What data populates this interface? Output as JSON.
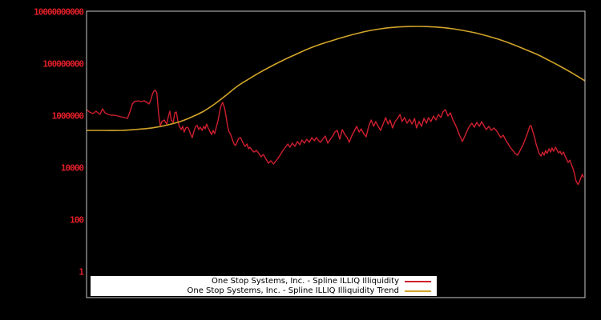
{
  "page": {
    "background": "#000000"
  },
  "chart_data": {
    "type": "line",
    "title": "",
    "grid": false,
    "plot_border_color": "#c9c9c9",
    "x_axis": {
      "label": "",
      "tick_labels": [],
      "units": "percent_of_range"
    },
    "y_axis": {
      "scale": "log",
      "label": "",
      "ticks": [
        1,
        100,
        10000,
        1000000,
        100000000,
        10000000000
      ],
      "tick_labels": [
        "1",
        "100",
        "10000",
        "1000000",
        "100000000",
        "10000000000"
      ],
      "range": [
        0.1,
        12000000000
      ],
      "tick_color": "#e01f26"
    },
    "legend": {
      "position": "bottom-inside",
      "background": "#ffffff",
      "text_color": "#000000"
    },
    "series": [
      {
        "name": "One Stop Systems, Inc. - Spline ILLIQ Illiquidity",
        "color": "#d01f2e",
        "style": "jagged",
        "points": [
          [
            0,
            1760000
          ],
          [
            0.6,
            1430000
          ],
          [
            1.3,
            1240000
          ],
          [
            1.9,
            1530000
          ],
          [
            2.7,
            1150000
          ],
          [
            3.2,
            1890000
          ],
          [
            3.7,
            1330000
          ],
          [
            4.3,
            1150000
          ],
          [
            5.0,
            1070000
          ],
          [
            5.6,
            1070000
          ],
          [
            6.3,
            1000000
          ],
          [
            6.9,
            930000
          ],
          [
            7.6,
            870000
          ],
          [
            8.2,
            810000
          ],
          [
            8.7,
            1430000
          ],
          [
            9.2,
            2900000
          ],
          [
            9.6,
            3600000
          ],
          [
            10.3,
            3850000
          ],
          [
            10.9,
            3600000
          ],
          [
            11.6,
            3850000
          ],
          [
            12.1,
            3330000
          ],
          [
            12.5,
            2900000
          ],
          [
            12.9,
            4100000
          ],
          [
            13.2,
            6800000
          ],
          [
            13.5,
            9000000
          ],
          [
            13.8,
            9700000
          ],
          [
            14.1,
            7800000
          ],
          [
            14.3,
            2900000
          ],
          [
            14.5,
            1000000
          ],
          [
            14.8,
            400000
          ],
          [
            15.1,
            610000
          ],
          [
            15.6,
            700000
          ],
          [
            16.1,
            490000
          ],
          [
            16.4,
            930000
          ],
          [
            16.7,
            1530000
          ],
          [
            17.0,
            700000
          ],
          [
            17.4,
            570000
          ],
          [
            17.7,
            1330000
          ],
          [
            18.0,
            1430000
          ],
          [
            18.3,
            700000
          ],
          [
            18.6,
            400000
          ],
          [
            19.0,
            300000
          ],
          [
            19.3,
            400000
          ],
          [
            19.6,
            240000
          ],
          [
            19.9,
            345000
          ],
          [
            20.3,
            370000
          ],
          [
            20.6,
            280000
          ],
          [
            20.9,
            196000
          ],
          [
            21.2,
            148000
          ],
          [
            21.5,
            240000
          ],
          [
            21.9,
            400000
          ],
          [
            22.2,
            430000
          ],
          [
            22.5,
            300000
          ],
          [
            22.8,
            370000
          ],
          [
            23.2,
            280000
          ],
          [
            23.5,
            400000
          ],
          [
            23.8,
            320000
          ],
          [
            24.1,
            490000
          ],
          [
            24.4,
            345000
          ],
          [
            24.8,
            240000
          ],
          [
            25.1,
            196000
          ],
          [
            25.4,
            280000
          ],
          [
            25.7,
            210000
          ],
          [
            26.0,
            345000
          ],
          [
            26.4,
            700000
          ],
          [
            26.7,
            1430000
          ],
          [
            27.0,
            2500000
          ],
          [
            27.3,
            3330000
          ],
          [
            27.7,
            2000000
          ],
          [
            28.0,
            930000
          ],
          [
            28.3,
            400000
          ],
          [
            28.6,
            240000
          ],
          [
            28.9,
            196000
          ],
          [
            29.3,
            119000
          ],
          [
            29.6,
            84000
          ],
          [
            29.9,
            73000
          ],
          [
            30.2,
            97000
          ],
          [
            30.5,
            137000
          ],
          [
            30.9,
            148000
          ],
          [
            31.2,
            111000
          ],
          [
            31.5,
            84000
          ],
          [
            31.8,
            68000
          ],
          [
            32.2,
            84000
          ],
          [
            32.5,
            55000
          ],
          [
            32.8,
            63000
          ],
          [
            33.1,
            51000
          ],
          [
            33.6,
            41000
          ],
          [
            34.1,
            47500
          ],
          [
            34.6,
            36000
          ],
          [
            35.0,
            27000
          ],
          [
            35.5,
            33000
          ],
          [
            36.0,
            22000
          ],
          [
            36.5,
            15300
          ],
          [
            37.0,
            18900
          ],
          [
            37.5,
            14300
          ],
          [
            37.9,
            17600
          ],
          [
            38.4,
            23400
          ],
          [
            38.9,
            33000
          ],
          [
            39.4,
            47500
          ],
          [
            39.9,
            63000
          ],
          [
            40.4,
            84000
          ],
          [
            40.8,
            63000
          ],
          [
            41.3,
            90000
          ],
          [
            41.8,
            68000
          ],
          [
            42.3,
            104000
          ],
          [
            42.8,
            78000
          ],
          [
            43.2,
            119000
          ],
          [
            43.7,
            90000
          ],
          [
            44.2,
            128000
          ],
          [
            44.7,
            97000
          ],
          [
            45.2,
            148000
          ],
          [
            45.7,
            111000
          ],
          [
            46.1,
            148000
          ],
          [
            46.6,
            111000
          ],
          [
            46.9,
            97000
          ],
          [
            47.4,
            128000
          ],
          [
            47.9,
            170000
          ],
          [
            48.4,
            90000
          ],
          [
            48.9,
            128000
          ],
          [
            49.4,
            170000
          ],
          [
            49.8,
            240000
          ],
          [
            50.3,
            280000
          ],
          [
            50.8,
            128000
          ],
          [
            51.3,
            300000
          ],
          [
            51.8,
            196000
          ],
          [
            52.3,
            148000
          ],
          [
            52.7,
            97000
          ],
          [
            53.2,
            170000
          ],
          [
            53.7,
            260000
          ],
          [
            54.2,
            400000
          ],
          [
            54.7,
            240000
          ],
          [
            55.1,
            320000
          ],
          [
            55.6,
            210000
          ],
          [
            56.1,
            158000
          ],
          [
            56.6,
            400000
          ],
          [
            57.1,
            700000
          ],
          [
            57.6,
            400000
          ],
          [
            58.0,
            610000
          ],
          [
            58.5,
            400000
          ],
          [
            59.0,
            280000
          ],
          [
            59.5,
            490000
          ],
          [
            60.0,
            870000
          ],
          [
            60.5,
            490000
          ],
          [
            60.9,
            700000
          ],
          [
            61.4,
            345000
          ],
          [
            61.9,
            610000
          ],
          [
            62.4,
            810000
          ],
          [
            62.9,
            1150000
          ],
          [
            63.3,
            610000
          ],
          [
            63.8,
            870000
          ],
          [
            64.3,
            530000
          ],
          [
            64.8,
            750000
          ],
          [
            65.3,
            490000
          ],
          [
            65.8,
            810000
          ],
          [
            66.2,
            345000
          ],
          [
            66.7,
            610000
          ],
          [
            67.2,
            400000
          ],
          [
            67.7,
            810000
          ],
          [
            68.2,
            530000
          ],
          [
            68.6,
            870000
          ],
          [
            69.1,
            610000
          ],
          [
            69.6,
            1000000
          ],
          [
            70.1,
            700000
          ],
          [
            70.6,
            1150000
          ],
          [
            71.1,
            870000
          ],
          [
            71.5,
            1430000
          ],
          [
            72.0,
            1760000
          ],
          [
            72.5,
            1000000
          ],
          [
            73.0,
            1330000
          ],
          [
            73.5,
            700000
          ],
          [
            74.0,
            460000
          ],
          [
            74.4,
            300000
          ],
          [
            74.9,
            170000
          ],
          [
            75.4,
            104000
          ],
          [
            75.9,
            170000
          ],
          [
            76.4,
            280000
          ],
          [
            76.8,
            400000
          ],
          [
            77.3,
            530000
          ],
          [
            77.8,
            370000
          ],
          [
            78.3,
            570000
          ],
          [
            78.8,
            400000
          ],
          [
            79.3,
            610000
          ],
          [
            79.7,
            430000
          ],
          [
            80.2,
            300000
          ],
          [
            80.7,
            400000
          ],
          [
            81.2,
            280000
          ],
          [
            81.7,
            345000
          ],
          [
            82.2,
            280000
          ],
          [
            82.6,
            210000
          ],
          [
            83.1,
            148000
          ],
          [
            83.6,
            183000
          ],
          [
            84.1,
            119000
          ],
          [
            84.6,
            84000
          ],
          [
            85.0,
            63000
          ],
          [
            85.5,
            47500
          ],
          [
            86.0,
            36000
          ],
          [
            86.5,
            31000
          ],
          [
            87.0,
            47500
          ],
          [
            87.5,
            73000
          ],
          [
            87.9,
            111000
          ],
          [
            88.4,
            196000
          ],
          [
            88.9,
            400000
          ],
          [
            89.2,
            430000
          ],
          [
            89.5,
            260000
          ],
          [
            89.9,
            148000
          ],
          [
            90.2,
            84000
          ],
          [
            90.5,
            55000
          ],
          [
            90.8,
            36000
          ],
          [
            91.2,
            29000
          ],
          [
            91.5,
            41000
          ],
          [
            91.8,
            31000
          ],
          [
            92.1,
            47500
          ],
          [
            92.4,
            36000
          ],
          [
            92.8,
            55000
          ],
          [
            93.1,
            41000
          ],
          [
            93.4,
            59000
          ],
          [
            93.7,
            44000
          ],
          [
            94.1,
            63000
          ],
          [
            94.4,
            47500
          ],
          [
            94.7,
            38500
          ],
          [
            95.0,
            44000
          ],
          [
            95.3,
            33000
          ],
          [
            95.7,
            41000
          ],
          [
            96.0,
            29000
          ],
          [
            96.3,
            22000
          ],
          [
            96.6,
            16400
          ],
          [
            97.0,
            20000
          ],
          [
            97.3,
            13300
          ],
          [
            97.6,
            9300
          ],
          [
            97.9,
            6100
          ],
          [
            98.2,
            3200
          ],
          [
            98.6,
            2300
          ],
          [
            98.9,
            3000
          ],
          [
            99.2,
            4300
          ],
          [
            99.5,
            5700
          ],
          [
            99.7,
            4300
          ]
        ]
      },
      {
        "name": "One Stop Systems, Inc. - Spline ILLIQ Illiquidity Trend",
        "color": "#d2a42a",
        "style": "smooth",
        "points": [
          [
            0,
            280000
          ],
          [
            3.5,
            280000
          ],
          [
            6.8,
            280000
          ],
          [
            9.6,
            300000
          ],
          [
            12.2,
            330000
          ],
          [
            14.5,
            385000
          ],
          [
            16.7,
            475000
          ],
          [
            19.0,
            630000
          ],
          [
            21.2,
            930000
          ],
          [
            23.5,
            1530000
          ],
          [
            25.7,
            2900000
          ],
          [
            28.0,
            6300000
          ],
          [
            30.2,
            13700000
          ],
          [
            32.5,
            26000000
          ],
          [
            34.9,
            49000000
          ],
          [
            37.3,
            87000000
          ],
          [
            39.7,
            148000000
          ],
          [
            42.1,
            240000000
          ],
          [
            44.5,
            385000000
          ],
          [
            46.9,
            570000000
          ],
          [
            49.4,
            810000000
          ],
          [
            51.8,
            1110000000
          ],
          [
            54.2,
            1480000000
          ],
          [
            56.6,
            1890000000
          ],
          [
            59.0,
            2260000000
          ],
          [
            61.4,
            2550000000
          ],
          [
            63.8,
            2740000000
          ],
          [
            66.2,
            2790000000
          ],
          [
            68.6,
            2740000000
          ],
          [
            71.1,
            2550000000
          ],
          [
            73.5,
            2260000000
          ],
          [
            75.9,
            1890000000
          ],
          [
            78.3,
            1530000000
          ],
          [
            80.7,
            1150000000
          ],
          [
            83.1,
            840000000
          ],
          [
            85.5,
            570000000
          ],
          [
            87.9,
            370000000
          ],
          [
            90.4,
            234000000
          ],
          [
            92.8,
            137000000
          ],
          [
            95.2,
            78000000
          ],
          [
            97.6,
            43000000
          ],
          [
            100,
            22600000
          ]
        ]
      }
    ]
  }
}
